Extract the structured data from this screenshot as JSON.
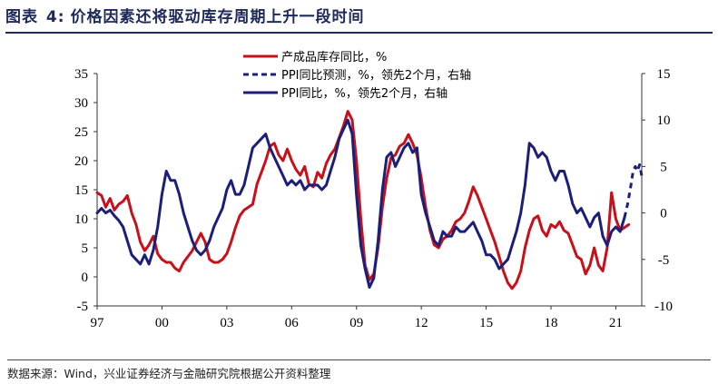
{
  "figure": {
    "label": "图表",
    "number": "4:",
    "title": "价格因素还将驱动库存周期上升一段时间",
    "source": "数据来源：Wind，兴业证券经济与金融研究院根据公开资料整理"
  },
  "chart_data": {
    "type": "line",
    "title": "价格因素还将驱动库存周期上升一段时间",
    "xlabel": "",
    "ylabel_left": "",
    "ylabel_right": "",
    "x_ticks": [
      "97",
      "00",
      "03",
      "06",
      "09",
      "12",
      "15",
      "18",
      "21"
    ],
    "x_range": [
      1997.0,
      2022.2
    ],
    "ylim_left": [
      -5,
      35
    ],
    "ylim_right": [
      -10,
      15
    ],
    "y_ticks_left": [
      -5,
      0,
      5,
      10,
      15,
      20,
      25,
      30,
      35
    ],
    "y_ticks_right": [
      -10,
      -5,
      0,
      5,
      10,
      15
    ],
    "legend_position": "top-center",
    "colors": {
      "inventory": "#c8101a",
      "ppi": "#1c1f7a"
    },
    "series": [
      {
        "name": "产成品库存同比，%",
        "axis": "left",
        "style": "solid",
        "color": "#c8101a",
        "points": [
          [
            1997.0,
            14.5
          ],
          [
            1997.2,
            14.0
          ],
          [
            1997.4,
            12.0
          ],
          [
            1997.6,
            13.5
          ],
          [
            1997.8,
            11.5
          ],
          [
            1998.0,
            12.5
          ],
          [
            1998.2,
            13.0
          ],
          [
            1998.4,
            14.0
          ],
          [
            1998.6,
            11.0
          ],
          [
            1998.8,
            9.0
          ],
          [
            1999.0,
            6.0
          ],
          [
            1999.2,
            4.5
          ],
          [
            1999.4,
            5.5
          ],
          [
            1999.6,
            7.0
          ],
          [
            1999.8,
            4.0
          ],
          [
            2000.0,
            3.0
          ],
          [
            2000.2,
            2.5
          ],
          [
            2000.4,
            2.5
          ],
          [
            2000.6,
            1.5
          ],
          [
            2000.8,
            1.0
          ],
          [
            2001.0,
            2.5
          ],
          [
            2001.2,
            3.5
          ],
          [
            2001.4,
            4.5
          ],
          [
            2001.6,
            6.0
          ],
          [
            2001.8,
            7.5
          ],
          [
            2002.0,
            6.0
          ],
          [
            2002.2,
            3.0
          ],
          [
            2002.4,
            2.5
          ],
          [
            2002.6,
            2.5
          ],
          [
            2002.8,
            3.0
          ],
          [
            2003.0,
            4.0
          ],
          [
            2003.2,
            6.0
          ],
          [
            2003.4,
            8.5
          ],
          [
            2003.6,
            10.5
          ],
          [
            2003.8,
            11.5
          ],
          [
            2004.0,
            12.0
          ],
          [
            2004.2,
            12.5
          ],
          [
            2004.4,
            16.0
          ],
          [
            2004.6,
            18.0
          ],
          [
            2004.8,
            20.0
          ],
          [
            2005.0,
            22.5
          ],
          [
            2005.2,
            23.0
          ],
          [
            2005.4,
            21.0
          ],
          [
            2005.6,
            20.0
          ],
          [
            2005.8,
            22.0
          ],
          [
            2006.0,
            20.0
          ],
          [
            2006.2,
            18.5
          ],
          [
            2006.4,
            17.5
          ],
          [
            2006.6,
            19.0
          ],
          [
            2006.8,
            16.0
          ],
          [
            2007.0,
            15.5
          ],
          [
            2007.2,
            18.0
          ],
          [
            2007.4,
            17.0
          ],
          [
            2007.6,
            19.5
          ],
          [
            2007.8,
            21.0
          ],
          [
            2008.0,
            22.0
          ],
          [
            2008.2,
            24.0
          ],
          [
            2008.4,
            26.0
          ],
          [
            2008.6,
            28.5
          ],
          [
            2008.8,
            27.0
          ],
          [
            2009.0,
            20.0
          ],
          [
            2009.2,
            10.0
          ],
          [
            2009.4,
            2.0
          ],
          [
            2009.6,
            -0.5
          ],
          [
            2009.8,
            0.5
          ],
          [
            2010.0,
            5.0
          ],
          [
            2010.2,
            12.0
          ],
          [
            2010.4,
            17.0
          ],
          [
            2010.6,
            20.5
          ],
          [
            2010.8,
            21.0
          ],
          [
            2011.0,
            22.5
          ],
          [
            2011.2,
            23.0
          ],
          [
            2011.4,
            24.5
          ],
          [
            2011.6,
            23.0
          ],
          [
            2011.8,
            21.0
          ],
          [
            2012.0,
            17.0
          ],
          [
            2012.2,
            12.0
          ],
          [
            2012.4,
            8.0
          ],
          [
            2012.6,
            5.5
          ],
          [
            2012.8,
            5.0
          ],
          [
            2013.0,
            6.5
          ],
          [
            2013.2,
            7.0
          ],
          [
            2013.4,
            8.0
          ],
          [
            2013.6,
            9.5
          ],
          [
            2013.8,
            10.0
          ],
          [
            2014.0,
            11.0
          ],
          [
            2014.2,
            13.0
          ],
          [
            2014.4,
            15.5
          ],
          [
            2014.6,
            14.0
          ],
          [
            2014.8,
            12.0
          ],
          [
            2015.0,
            10.0
          ],
          [
            2015.2,
            8.0
          ],
          [
            2015.4,
            6.0
          ],
          [
            2015.6,
            3.5
          ],
          [
            2015.8,
            1.0
          ],
          [
            2016.0,
            -1.0
          ],
          [
            2016.2,
            -2.0
          ],
          [
            2016.4,
            -1.0
          ],
          [
            2016.6,
            1.0
          ],
          [
            2016.8,
            5.0
          ],
          [
            2017.0,
            8.0
          ],
          [
            2017.2,
            10.0
          ],
          [
            2017.4,
            10.5
          ],
          [
            2017.6,
            8.0
          ],
          [
            2017.8,
            7.0
          ],
          [
            2018.0,
            9.0
          ],
          [
            2018.2,
            8.5
          ],
          [
            2018.4,
            9.5
          ],
          [
            2018.6,
            8.0
          ],
          [
            2018.8,
            7.5
          ],
          [
            2019.0,
            5.5
          ],
          [
            2019.2,
            3.5
          ],
          [
            2019.4,
            3.0
          ],
          [
            2019.6,
            0.5
          ],
          [
            2019.8,
            2.0
          ],
          [
            2020.0,
            5.0
          ],
          [
            2020.2,
            2.0
          ],
          [
            2020.4,
            1.0
          ],
          [
            2020.6,
            5.0
          ],
          [
            2020.8,
            14.5
          ],
          [
            2021.0,
            10.0
          ],
          [
            2021.2,
            8.0
          ],
          [
            2021.4,
            8.5
          ],
          [
            2021.6,
            9.0
          ]
        ]
      },
      {
        "name": "PPI同比预测，%，领先2个月，右轴",
        "axis": "right",
        "style": "dashed",
        "color": "#1c1f7a",
        "points": [
          [
            2021.4,
            -0.5
          ],
          [
            2021.55,
            1.0
          ],
          [
            2021.7,
            3.0
          ],
          [
            2021.8,
            4.5
          ],
          [
            2021.9,
            5.0
          ],
          [
            2022.0,
            4.5
          ],
          [
            2022.1,
            5.2
          ],
          [
            2022.2,
            4.0
          ]
        ]
      },
      {
        "name": "PPI同比，%，领先2个月，右轴",
        "axis": "right",
        "style": "solid",
        "color": "#1c1f7a",
        "points": [
          [
            1997.0,
            0.0
          ],
          [
            1997.2,
            0.5
          ],
          [
            1997.4,
            0.0
          ],
          [
            1997.6,
            0.3
          ],
          [
            1997.8,
            -0.3
          ],
          [
            1998.0,
            -0.8
          ],
          [
            1998.2,
            -1.5
          ],
          [
            1998.4,
            -3.0
          ],
          [
            1998.6,
            -4.5
          ],
          [
            1998.8,
            -5.0
          ],
          [
            1999.0,
            -5.5
          ],
          [
            1999.2,
            -4.5
          ],
          [
            1999.4,
            -5.5
          ],
          [
            1999.6,
            -4.0
          ],
          [
            1999.8,
            -1.5
          ],
          [
            2000.0,
            2.0
          ],
          [
            2000.2,
            4.5
          ],
          [
            2000.4,
            3.5
          ],
          [
            2000.6,
            3.5
          ],
          [
            2000.8,
            2.0
          ],
          [
            2001.0,
            0.0
          ],
          [
            2001.2,
            -1.5
          ],
          [
            2001.4,
            -3.0
          ],
          [
            2001.6,
            -4.0
          ],
          [
            2001.8,
            -4.5
          ],
          [
            2002.0,
            -4.0
          ],
          [
            2002.2,
            -3.0
          ],
          [
            2002.4,
            -1.5
          ],
          [
            2002.6,
            -0.5
          ],
          [
            2002.8,
            0.5
          ],
          [
            2003.0,
            2.5
          ],
          [
            2003.2,
            3.5
          ],
          [
            2003.4,
            2.0
          ],
          [
            2003.6,
            2.0
          ],
          [
            2003.8,
            3.0
          ],
          [
            2004.0,
            5.0
          ],
          [
            2004.2,
            7.0
          ],
          [
            2004.4,
            7.5
          ],
          [
            2004.6,
            8.0
          ],
          [
            2004.8,
            8.5
          ],
          [
            2005.0,
            7.0
          ],
          [
            2005.2,
            6.0
          ],
          [
            2005.4,
            5.0
          ],
          [
            2005.6,
            4.0
          ],
          [
            2005.8,
            3.0
          ],
          [
            2006.0,
            3.5
          ],
          [
            2006.2,
            3.0
          ],
          [
            2006.4,
            3.5
          ],
          [
            2006.6,
            2.5
          ],
          [
            2006.8,
            3.0
          ],
          [
            2007.0,
            3.0
          ],
          [
            2007.2,
            3.0
          ],
          [
            2007.4,
            2.5
          ],
          [
            2007.6,
            3.0
          ],
          [
            2007.8,
            4.5
          ],
          [
            2008.0,
            6.0
          ],
          [
            2008.2,
            8.0
          ],
          [
            2008.4,
            9.0
          ],
          [
            2008.6,
            10.0
          ],
          [
            2008.8,
            8.5
          ],
          [
            2009.0,
            2.0
          ],
          [
            2009.2,
            -3.5
          ],
          [
            2009.4,
            -6.0
          ],
          [
            2009.6,
            -8.0
          ],
          [
            2009.8,
            -7.0
          ],
          [
            2010.0,
            -3.0
          ],
          [
            2010.2,
            2.5
          ],
          [
            2010.4,
            6.0
          ],
          [
            2010.6,
            6.5
          ],
          [
            2010.8,
            5.0
          ],
          [
            2011.0,
            6.0
          ],
          [
            2011.2,
            7.0
          ],
          [
            2011.4,
            7.5
          ],
          [
            2011.6,
            6.5
          ],
          [
            2011.8,
            7.0
          ],
          [
            2012.0,
            2.0
          ],
          [
            2012.2,
            0.0
          ],
          [
            2012.4,
            -1.5
          ],
          [
            2012.6,
            -3.0
          ],
          [
            2012.8,
            -3.5
          ],
          [
            2013.0,
            -2.0
          ],
          [
            2013.2,
            -2.5
          ],
          [
            2013.4,
            -2.5
          ],
          [
            2013.6,
            -1.5
          ],
          [
            2013.8,
            -2.0
          ],
          [
            2014.0,
            -2.0
          ],
          [
            2014.2,
            -1.5
          ],
          [
            2014.4,
            -1.0
          ],
          [
            2014.6,
            -2.0
          ],
          [
            2014.8,
            -3.0
          ],
          [
            2015.0,
            -4.5
          ],
          [
            2015.2,
            -4.5
          ],
          [
            2015.4,
            -5.0
          ],
          [
            2015.6,
            -6.0
          ],
          [
            2015.8,
            -5.5
          ],
          [
            2016.0,
            -5.0
          ],
          [
            2016.2,
            -3.5
          ],
          [
            2016.4,
            -2.0
          ],
          [
            2016.6,
            0.0
          ],
          [
            2016.8,
            3.0
          ],
          [
            2017.0,
            7.5
          ],
          [
            2017.2,
            7.0
          ],
          [
            2017.4,
            6.0
          ],
          [
            2017.6,
            6.5
          ],
          [
            2017.8,
            6.0
          ],
          [
            2018.0,
            4.5
          ],
          [
            2018.2,
            3.5
          ],
          [
            2018.4,
            4.5
          ],
          [
            2018.6,
            4.5
          ],
          [
            2018.8,
            3.0
          ],
          [
            2019.0,
            1.0
          ],
          [
            2019.2,
            0.0
          ],
          [
            2019.4,
            0.5
          ],
          [
            2019.6,
            -0.5
          ],
          [
            2019.8,
            -1.5
          ],
          [
            2020.0,
            -0.5
          ],
          [
            2020.2,
            0.0
          ],
          [
            2020.4,
            -2.5
          ],
          [
            2020.6,
            -3.5
          ],
          [
            2020.8,
            -2.0
          ],
          [
            2021.0,
            -1.5
          ],
          [
            2021.2,
            -2.0
          ],
          [
            2021.4,
            -0.5
          ]
        ]
      }
    ]
  }
}
